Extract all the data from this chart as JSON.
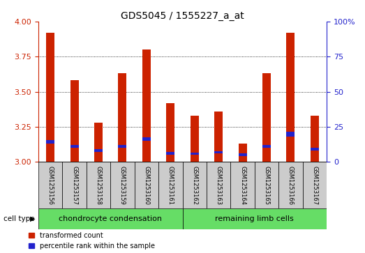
{
  "title": "GDS5045 / 1555227_a_at",
  "samples": [
    "GSM1253156",
    "GSM1253157",
    "GSM1253158",
    "GSM1253159",
    "GSM1253160",
    "GSM1253161",
    "GSM1253162",
    "GSM1253163",
    "GSM1253164",
    "GSM1253165",
    "GSM1253166",
    "GSM1253167"
  ],
  "red_tops": [
    3.92,
    3.58,
    3.28,
    3.63,
    3.8,
    3.42,
    3.33,
    3.36,
    3.13,
    3.63,
    3.92,
    3.33
  ],
  "blue_bottom": [
    3.13,
    3.1,
    3.07,
    3.1,
    3.15,
    3.05,
    3.05,
    3.06,
    3.04,
    3.1,
    3.18,
    3.08
  ],
  "blue_height": [
    0.025,
    0.02,
    0.02,
    0.02,
    0.025,
    0.02,
    0.018,
    0.018,
    0.022,
    0.022,
    0.035,
    0.02
  ],
  "ylim_left": [
    3.0,
    4.0
  ],
  "yticks_left": [
    3.0,
    3.25,
    3.5,
    3.75,
    4.0
  ],
  "ylim_right": [
    0,
    100
  ],
  "yticks_right": [
    0,
    25,
    50,
    75,
    100
  ],
  "bar_color": "#cc2200",
  "blue_color": "#2222cc",
  "group1_label": "chondrocyte condensation",
  "group2_label": "remaining limb cells",
  "cell_type_label": "cell type",
  "legend_red": "transformed count",
  "legend_blue": "percentile rank within the sample",
  "group_color": "#66dd66",
  "label_box_color": "#cccccc",
  "bar_width": 0.35,
  "title_fontsize": 10,
  "tick_fontsize": 8,
  "sample_fontsize": 6,
  "group_fontsize": 8
}
